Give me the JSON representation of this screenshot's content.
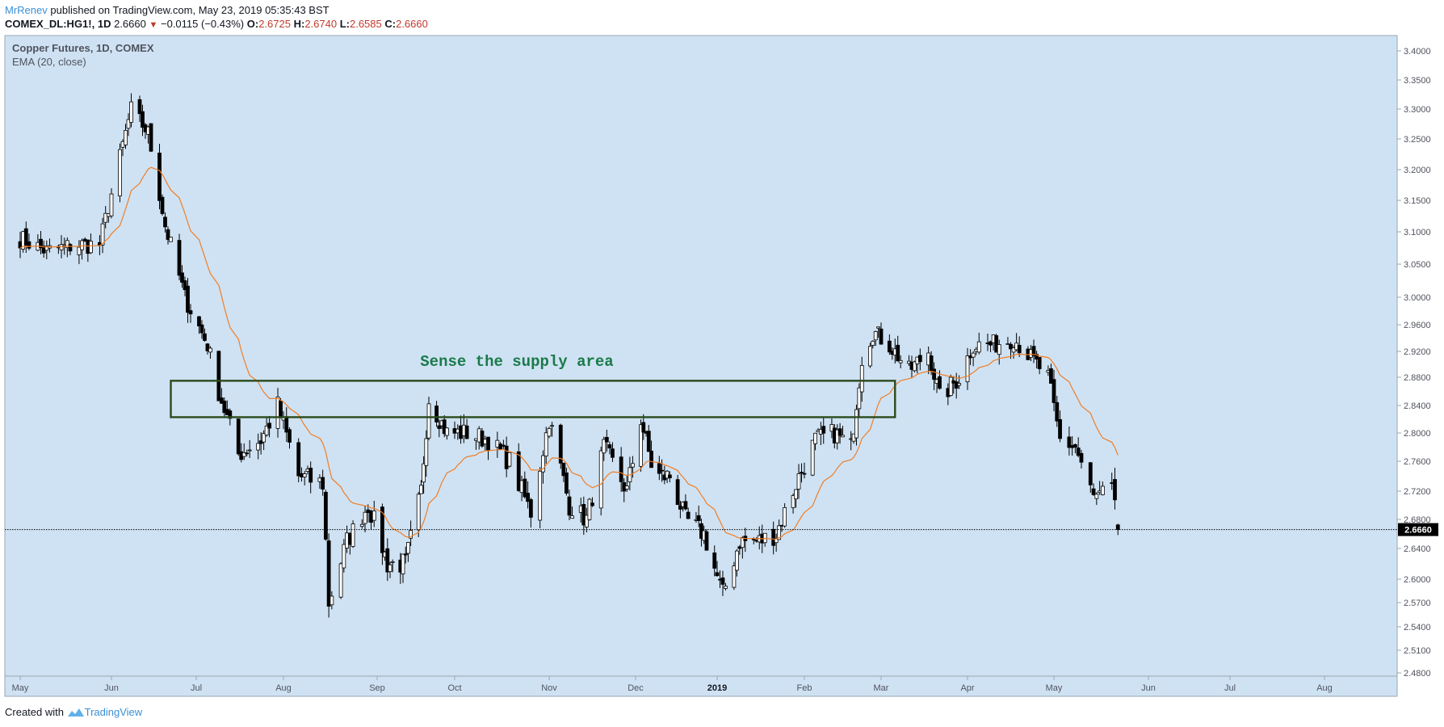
{
  "header": {
    "author": "MrRenev",
    "published_text": "published on TradingView.com, May 23, 2019 05:35:43 BST",
    "symbol": "COMEX_DL:HG1!, 1D",
    "last": "2.6660",
    "change": "−0.0115 (−0.43%)",
    "o_label": "O:",
    "o": "2.6725",
    "h_label": "H:",
    "h": "2.6740",
    "l_label": "L:",
    "l": "2.6585",
    "c_label": "C:",
    "c": "2.6660"
  },
  "legend": {
    "title": "Copper Futures, 1D, COMEX",
    "indicator": "EMA (20, close)"
  },
  "annotation": {
    "text": "Sense the supply area"
  },
  "footer": {
    "created_with": "Created with",
    "brand": "TradingView"
  },
  "colors": {
    "background": "#cfe2f3",
    "candle": "#000000",
    "ema": "#f07e26",
    "box": "#2b4a1a",
    "annotation": "#1a7a4a",
    "price_badge": "#000000"
  },
  "chart_data": {
    "type": "candlestick",
    "title": "Copper Futures, 1D, COMEX",
    "ylim": [
      2.48,
      3.42
    ],
    "price_scale": "linear",
    "grid": false,
    "y_ticks": [
      "3.4000",
      "3.3500",
      "3.3000",
      "3.2500",
      "3.2000",
      "3.1500",
      "3.1000",
      "3.0500",
      "3.0000",
      "2.9600",
      "2.9200",
      "2.8800",
      "2.8400",
      "2.8000",
      "2.7600",
      "2.7200",
      "2.6800",
      "2.6400",
      "2.6000",
      "2.5700",
      "2.5400",
      "2.5100",
      "2.4800"
    ],
    "x_ticks": [
      "May",
      "Jun",
      "Jul",
      "Aug",
      "Sep",
      "Oct",
      "Nov",
      "Dec",
      "2019",
      "Feb",
      "Mar",
      "Apr",
      "May",
      "Jun",
      "Jul",
      "Aug"
    ],
    "last_price": "2.6660",
    "supply_zone": {
      "top": 2.875,
      "bottom": 2.823,
      "from": "2018-06-22",
      "to": "2019-03-06"
    },
    "close_anchors": [
      [
        "2018-05-01",
        3.09
      ],
      [
        "2018-05-10",
        3.07
      ],
      [
        "2018-05-20",
        3.08
      ],
      [
        "2018-05-28",
        3.08
      ],
      [
        "2018-06-04",
        3.22
      ],
      [
        "2018-06-08",
        3.3
      ],
      [
        "2018-06-14",
        3.26
      ],
      [
        "2018-06-20",
        3.11
      ],
      [
        "2018-06-27",
        3.0
      ],
      [
        "2018-07-05",
        2.93
      ],
      [
        "2018-07-09",
        2.86
      ],
      [
        "2018-07-16",
        2.77
      ],
      [
        "2018-07-24",
        2.79
      ],
      [
        "2018-07-30",
        2.84
      ],
      [
        "2018-08-06",
        2.74
      ],
      [
        "2018-08-14",
        2.73
      ],
      [
        "2018-08-16",
        2.57
      ],
      [
        "2018-08-22",
        2.65
      ],
      [
        "2018-08-29",
        2.7
      ],
      [
        "2018-09-05",
        2.62
      ],
      [
        "2018-09-12",
        2.62
      ],
      [
        "2018-09-18",
        2.72
      ],
      [
        "2018-09-21",
        2.85
      ],
      [
        "2018-09-28",
        2.8
      ],
      [
        "2018-10-05",
        2.8
      ],
      [
        "2018-10-12",
        2.79
      ],
      [
        "2018-10-19",
        2.76
      ],
      [
        "2018-10-26",
        2.69
      ],
      [
        "2018-11-01",
        2.82
      ],
      [
        "2018-11-08",
        2.7
      ],
      [
        "2018-11-14",
        2.68
      ],
      [
        "2018-11-20",
        2.78
      ],
      [
        "2018-11-28",
        2.72
      ],
      [
        "2018-12-03",
        2.82
      ],
      [
        "2018-12-08",
        2.74
      ],
      [
        "2018-12-14",
        2.74
      ],
      [
        "2018-12-20",
        2.68
      ],
      [
        "2018-12-27",
        2.66
      ],
      [
        "2019-01-03",
        2.58
      ],
      [
        "2019-01-09",
        2.65
      ],
      [
        "2019-01-16",
        2.65
      ],
      [
        "2019-01-22",
        2.66
      ],
      [
        "2019-01-29",
        2.73
      ],
      [
        "2019-02-05",
        2.79
      ],
      [
        "2019-02-12",
        2.8
      ],
      [
        "2019-02-18",
        2.78
      ],
      [
        "2019-02-22",
        2.91
      ],
      [
        "2019-02-26",
        2.95
      ],
      [
        "2019-03-04",
        2.93
      ],
      [
        "2019-03-11",
        2.89
      ],
      [
        "2019-03-18",
        2.92
      ],
      [
        "2019-03-22",
        2.85
      ],
      [
        "2019-03-29",
        2.88
      ],
      [
        "2019-04-03",
        2.93
      ],
      [
        "2019-04-10",
        2.93
      ],
      [
        "2019-04-17",
        2.94
      ],
      [
        "2019-04-23",
        2.91
      ],
      [
        "2019-04-29",
        2.88
      ],
      [
        "2019-05-03",
        2.79
      ],
      [
        "2019-05-08",
        2.78
      ],
      [
        "2019-05-14",
        2.71
      ],
      [
        "2019-05-20",
        2.72
      ],
      [
        "2019-05-22",
        2.666
      ]
    ]
  }
}
